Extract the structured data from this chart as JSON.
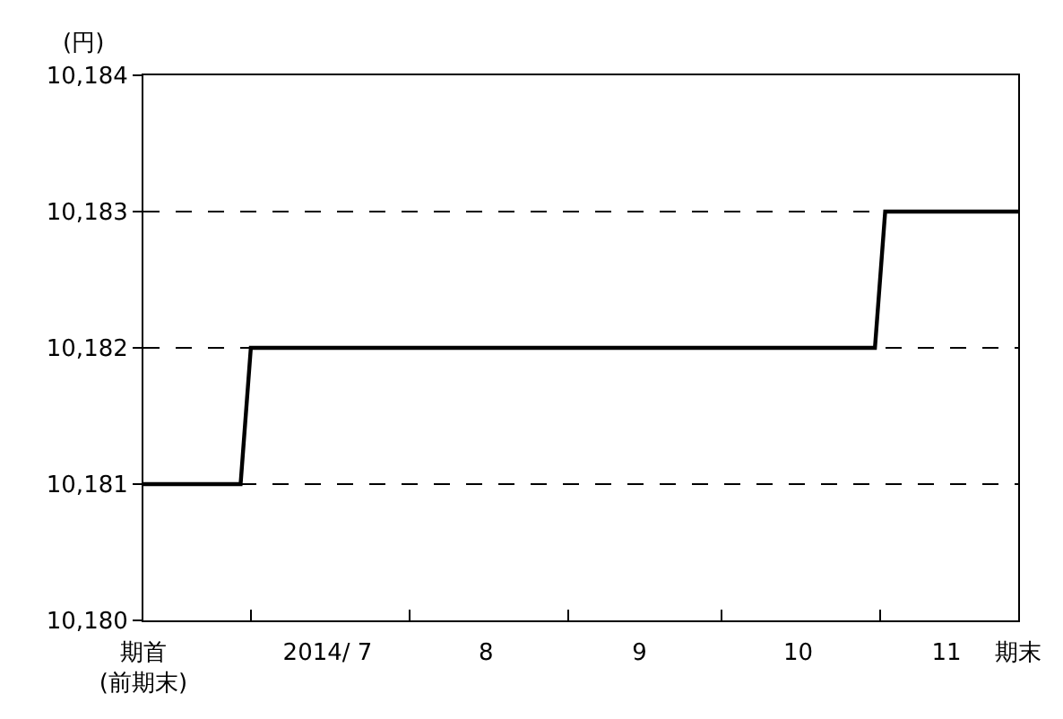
{
  "chart_data": {
    "type": "line",
    "ylabel": "(円)",
    "x": [
      "2014-06-10",
      "2014-06-29",
      "2014-07-01",
      "2014-10-31",
      "2014-11-02",
      "2014-11-28"
    ],
    "series": [
      {
        "color": "#000000",
        "values": [
          10181,
          10181,
          10182,
          10182,
          10183,
          10183
        ]
      }
    ],
    "xlim": [
      "2014-06-10",
      "2014-11-28"
    ],
    "xticks": [
      {
        "value": "2014-06-10",
        "label": "期首\n(前期末)"
      },
      {
        "value": "2014-07-01",
        "label": null
      },
      {
        "value": "2014-07-16",
        "label": "2014/ 7"
      },
      {
        "value": "2014-08-01",
        "label": null
      },
      {
        "value": "2014-08-16",
        "label": "8"
      },
      {
        "value": "2014-09-01",
        "label": null
      },
      {
        "value": "2014-09-15",
        "label": "9"
      },
      {
        "value": "2014-10-01",
        "label": null
      },
      {
        "value": "2014-10-16",
        "label": "10"
      },
      {
        "value": "2014-11-01",
        "label": null
      },
      {
        "value": "2014-11-14",
        "label": "11"
      },
      {
        "value": "2014-11-28",
        "label": "期末"
      }
    ],
    "ylim": [
      10180,
      10184
    ],
    "yticks": [
      {
        "value": 10180,
        "label": "10,180"
      },
      {
        "value": 10181,
        "label": "10,181"
      },
      {
        "value": 10182,
        "label": "10,182"
      },
      {
        "value": 10183,
        "label": "10,183"
      },
      {
        "value": 10184,
        "label": "10,184"
      }
    ],
    "grid": "y",
    "line_style": "solid",
    "marker": "none"
  }
}
